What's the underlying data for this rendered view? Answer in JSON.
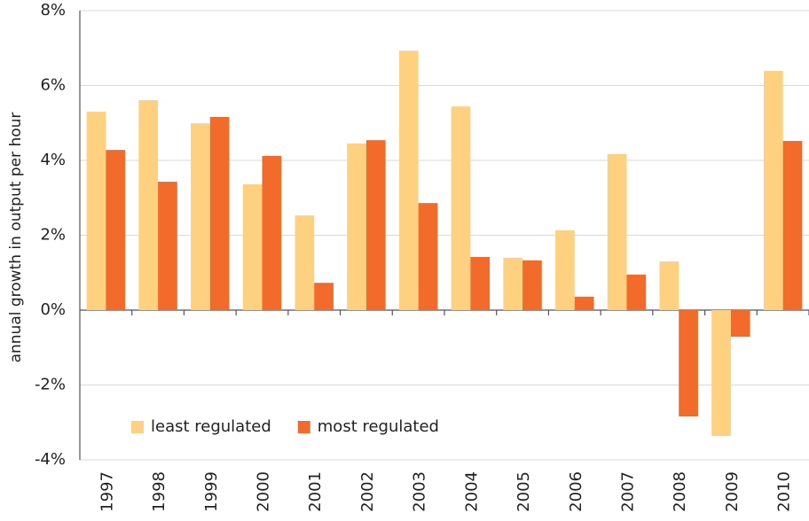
{
  "chart_data": {
    "type": "bar",
    "y_label": "annual growth in output per hour",
    "categories": [
      "1997",
      "1998",
      "1999",
      "2000",
      "2001",
      "2002",
      "2003",
      "2004",
      "2005",
      "2006",
      "2007",
      "2008",
      "2009",
      "2010"
    ],
    "series": [
      {
        "name": "least regulated",
        "color": "#fdd17f",
        "values": [
          5.3,
          5.61,
          4.99,
          3.36,
          2.53,
          4.45,
          6.93,
          5.44,
          1.4,
          2.13,
          4.17,
          1.3,
          -3.36,
          6.39
        ]
      },
      {
        "name": "most regulated",
        "color": "#f26b2a",
        "values": [
          4.28,
          3.43,
          5.16,
          4.12,
          0.73,
          4.54,
          2.86,
          1.42,
          1.33,
          0.36,
          0.95,
          -2.84,
          -0.71,
          4.52
        ]
      }
    ],
    "ylim": [
      -4,
      8
    ],
    "yticks": [
      {
        "value": -4,
        "label": "-4%"
      },
      {
        "value": -2,
        "label": "-2%"
      },
      {
        "value": 0,
        "label": "0%"
      },
      {
        "value": 2,
        "label": "2%"
      },
      {
        "value": 4,
        "label": "4%"
      },
      {
        "value": 6,
        "label": "6%"
      },
      {
        "value": 8,
        "label": "8%"
      }
    ],
    "grid": true,
    "legend": "lower left"
  }
}
